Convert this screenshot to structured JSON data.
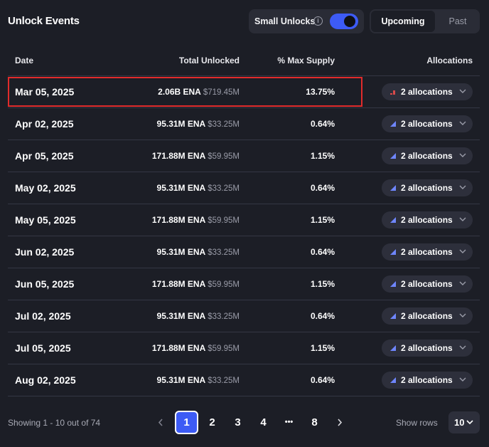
{
  "header": {
    "title": "Unlock Events",
    "small_unlocks_label": "Small Unlocks",
    "small_unlocks_on": true,
    "tabs": [
      {
        "label": "Upcoming",
        "active": true
      },
      {
        "label": "Past",
        "active": false
      }
    ]
  },
  "table": {
    "columns": [
      "Date",
      "Total Unlocked",
      "% Max Supply",
      "Allocations"
    ],
    "rows": [
      {
        "date": "Mar 05, 2025",
        "amount": "2.06B ENA",
        "usd": "$719.45M",
        "pct": "13.75%",
        "alloc": "2 allocations",
        "icon": "bar-chart-red-icon",
        "highlighted": true
      },
      {
        "date": "Apr 02, 2025",
        "amount": "95.31M ENA",
        "usd": "$33.25M",
        "pct": "0.64%",
        "alloc": "2 allocations",
        "icon": "area-chart-icon"
      },
      {
        "date": "Apr 05, 2025",
        "amount": "171.88M ENA",
        "usd": "$59.95M",
        "pct": "1.15%",
        "alloc": "2 allocations",
        "icon": "area-chart-icon"
      },
      {
        "date": "May 02, 2025",
        "amount": "95.31M ENA",
        "usd": "$33.25M",
        "pct": "0.64%",
        "alloc": "2 allocations",
        "icon": "area-chart-icon"
      },
      {
        "date": "May 05, 2025",
        "amount": "171.88M ENA",
        "usd": "$59.95M",
        "pct": "1.15%",
        "alloc": "2 allocations",
        "icon": "area-chart-icon"
      },
      {
        "date": "Jun 02, 2025",
        "amount": "95.31M ENA",
        "usd": "$33.25M",
        "pct": "0.64%",
        "alloc": "2 allocations",
        "icon": "area-chart-icon"
      },
      {
        "date": "Jun 05, 2025",
        "amount": "171.88M ENA",
        "usd": "$59.95M",
        "pct": "1.15%",
        "alloc": "2 allocations",
        "icon": "area-chart-icon"
      },
      {
        "date": "Jul 02, 2025",
        "amount": "95.31M ENA",
        "usd": "$33.25M",
        "pct": "0.64%",
        "alloc": "2 allocations",
        "icon": "area-chart-icon"
      },
      {
        "date": "Jul 05, 2025",
        "amount": "171.88M ENA",
        "usd": "$59.95M",
        "pct": "1.15%",
        "alloc": "2 allocations",
        "icon": "area-chart-icon"
      },
      {
        "date": "Aug 02, 2025",
        "amount": "95.31M ENA",
        "usd": "$33.25M",
        "pct": "0.64%",
        "alloc": "2 allocations",
        "icon": "area-chart-icon"
      }
    ]
  },
  "footer": {
    "showing": "Showing 1 - 10 out of 74",
    "pages": [
      "1",
      "2",
      "3",
      "4",
      "•••",
      "8"
    ],
    "active_page": "1",
    "show_rows_label": "Show rows",
    "rows_value": "10"
  },
  "colors": {
    "background": "#1c1e26",
    "accent": "#3d5bf5",
    "highlight_border": "#e12b2b",
    "muted_text": "#9a9ca8"
  }
}
